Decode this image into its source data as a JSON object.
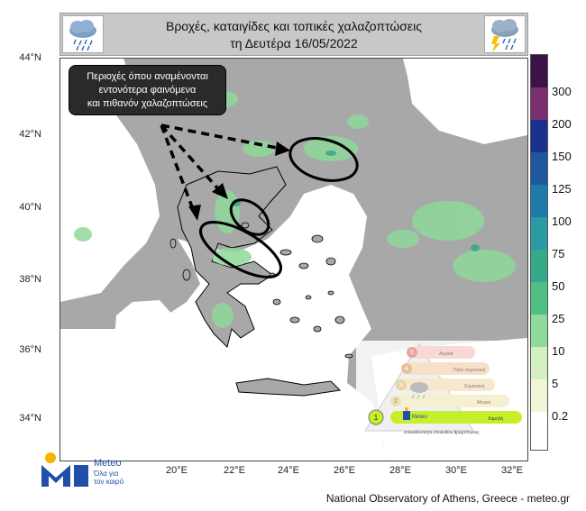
{
  "header": {
    "title_line1": "Βροχές, καταιγίδες και τοπικές χαλαζοπτώσεις",
    "title_line2": "τη Δευτέρα 16/05/2022",
    "left_icon": "rain-cloud-icon",
    "right_icon": "thunderstorm-icon"
  },
  "map": {
    "lat_labels": [
      "44°N",
      "42°N",
      "40°N",
      "38°N",
      "36°N",
      "34°N"
    ],
    "lon_labels": [
      "20°E",
      "22°E",
      "24°E",
      "26°E",
      "28°E",
      "30°E",
      "32°E"
    ],
    "colors": {
      "land": "#a8a8a8",
      "sea": "#ffffff",
      "coast": "#000000",
      "arrow": "#000000"
    }
  },
  "callout": {
    "line1": "Περιοχές όπου αναμένονται",
    "line2": "εντονότερα φαινόμενα",
    "line3": "και πιθανόν χαλαζοπτώσεις"
  },
  "legend": {
    "labels": [
      "300",
      "200",
      "150",
      "125",
      "100",
      "75",
      "50",
      "25",
      "10",
      "5",
      "0.2"
    ],
    "colors": [
      "#3b1348",
      "#7a2f6f",
      "#1b2f8f",
      "#20589e",
      "#1e7aa8",
      "#2a9aa3",
      "#35a98a",
      "#4fbf86",
      "#8fd99a",
      "#d5f0c0",
      "#f3f6d6",
      "#ffffff"
    ]
  },
  "pyramid": {
    "levels": [
      "Ακραία",
      "Πολύ σημαντική",
      "Σημαντική",
      "Μέτρια",
      "Χαμηλή"
    ],
    "numbers": [
      "5",
      "4",
      "3",
      "2",
      "1"
    ],
    "brand": "Meteo",
    "caption": "Επικινδυνότητα επεισοδίου βροχόπτωσης"
  },
  "logo": {
    "name": "Meteo",
    "tagline_line1": "Όλα για",
    "tagline_line2": "τον καιρό"
  },
  "footer": "National Observatory of Athens, Greece - meteo.gr"
}
